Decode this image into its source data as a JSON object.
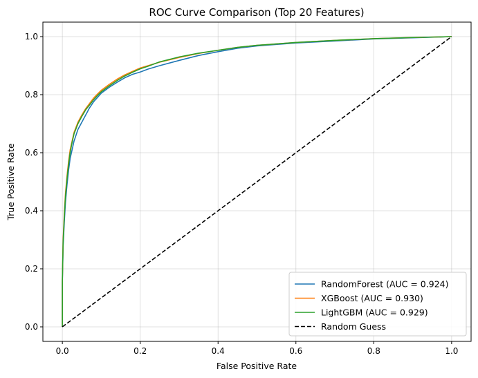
{
  "chart_data": {
    "type": "line",
    "title": "ROC Curve Comparison (Top 20 Features)",
    "xlabel": "False Positive Rate",
    "ylabel": "True Positive Rate",
    "xlim": [
      -0.05,
      1.05
    ],
    "ylim": [
      -0.05,
      1.05
    ],
    "x_ticks": [
      "0.0",
      "0.2",
      "0.4",
      "0.6",
      "0.8",
      "1.0"
    ],
    "y_ticks": [
      "0.0",
      "0.2",
      "0.4",
      "0.6",
      "0.8",
      "1.0"
    ],
    "grid": true,
    "legend_position": "lower-right",
    "series": [
      {
        "name": "RandomForest (AUC = 0.924)",
        "color": "#1f77b4",
        "style": "solid",
        "x": [
          0,
          0,
          0.002,
          0.005,
          0.008,
          0.012,
          0.016,
          0.02,
          0.025,
          0.03,
          0.04,
          0.05,
          0.06,
          0.07,
          0.08,
          0.09,
          0.1,
          0.12,
          0.14,
          0.16,
          0.18,
          0.2,
          0.22,
          0.25,
          0.3,
          0.35,
          0.4,
          0.45,
          0.5,
          0.6,
          0.7,
          0.8,
          0.9,
          1.0
        ],
        "y": [
          0,
          0.15,
          0.28,
          0.36,
          0.43,
          0.49,
          0.54,
          0.58,
          0.61,
          0.64,
          0.68,
          0.705,
          0.73,
          0.755,
          0.775,
          0.79,
          0.805,
          0.825,
          0.842,
          0.858,
          0.87,
          0.878,
          0.888,
          0.9,
          0.918,
          0.935,
          0.948,
          0.96,
          0.968,
          0.978,
          0.985,
          0.992,
          0.996,
          1.0
        ]
      },
      {
        "name": "XGBoost (AUC = 0.930)",
        "color": "#ff7f0e",
        "style": "solid",
        "x": [
          0,
          0,
          0.002,
          0.005,
          0.008,
          0.012,
          0.016,
          0.02,
          0.025,
          0.03,
          0.04,
          0.05,
          0.06,
          0.07,
          0.08,
          0.09,
          0.1,
          0.12,
          0.14,
          0.16,
          0.18,
          0.2,
          0.22,
          0.25,
          0.3,
          0.35,
          0.4,
          0.45,
          0.5,
          0.6,
          0.7,
          0.8,
          0.9,
          1.0
        ],
        "y": [
          0,
          0.16,
          0.3,
          0.39,
          0.46,
          0.52,
          0.57,
          0.61,
          0.64,
          0.67,
          0.705,
          0.73,
          0.752,
          0.77,
          0.788,
          0.802,
          0.815,
          0.835,
          0.853,
          0.868,
          0.88,
          0.892,
          0.9,
          0.912,
          0.928,
          0.942,
          0.953,
          0.963,
          0.97,
          0.98,
          0.987,
          0.993,
          0.997,
          1.0
        ]
      },
      {
        "name": "LightGBM (AUC = 0.929)",
        "color": "#2ca02c",
        "style": "solid",
        "x": [
          0,
          0,
          0.002,
          0.005,
          0.008,
          0.012,
          0.016,
          0.02,
          0.025,
          0.03,
          0.04,
          0.05,
          0.06,
          0.07,
          0.08,
          0.09,
          0.1,
          0.12,
          0.14,
          0.16,
          0.18,
          0.2,
          0.22,
          0.25,
          0.3,
          0.35,
          0.4,
          0.45,
          0.5,
          0.6,
          0.7,
          0.8,
          0.9,
          1.0
        ],
        "y": [
          0,
          0.16,
          0.29,
          0.38,
          0.45,
          0.51,
          0.56,
          0.6,
          0.635,
          0.665,
          0.7,
          0.725,
          0.748,
          0.765,
          0.782,
          0.797,
          0.81,
          0.83,
          0.848,
          0.864,
          0.877,
          0.889,
          0.898,
          0.913,
          0.93,
          0.943,
          0.953,
          0.963,
          0.97,
          0.98,
          0.987,
          0.993,
          0.997,
          1.0
        ]
      },
      {
        "name": "Random Guess",
        "color": "#000000",
        "style": "dashed",
        "x": [
          0,
          1
        ],
        "y": [
          0,
          1
        ]
      }
    ]
  }
}
